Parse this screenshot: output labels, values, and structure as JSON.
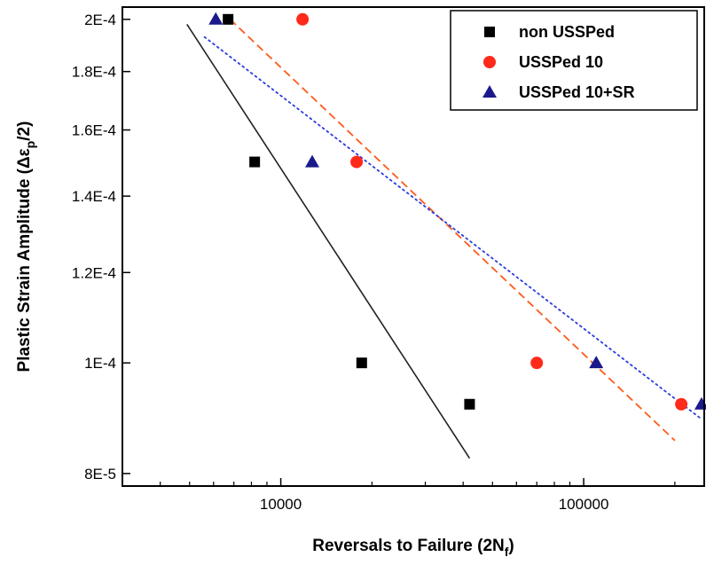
{
  "chart_data": {
    "type": "scatter",
    "x_scale": "log",
    "y_scale": "log",
    "xlim": [
      3000,
      250000
    ],
    "ylim": [
      7.8e-05,
      0.000205
    ],
    "x_ticks": [
      {
        "value": 10000,
        "label": "10000"
      },
      {
        "value": 100000,
        "label": "100000"
      }
    ],
    "y_ticks": [
      {
        "value": 8e-05,
        "label": "8E-5"
      },
      {
        "value": 0.0001,
        "label": "1E-4"
      },
      {
        "value": 0.00012,
        "label": "1.2E-4"
      },
      {
        "value": 0.00014,
        "label": "1.4E-4"
      },
      {
        "value": 0.00016,
        "label": "1.6E-4"
      },
      {
        "value": 0.00018,
        "label": "1.8E-4"
      },
      {
        "value": 0.0002,
        "label": "2E-4"
      }
    ],
    "xlabel": {
      "main": "Reversals to Failure (2N",
      "sub": "f",
      "end": ")"
    },
    "ylabel": {
      "main": "Plastic Strain Amplitude (Δε",
      "sub": "p",
      "end": "/2)"
    },
    "grid": false,
    "legend_position": "top-right",
    "series": [
      {
        "name": "non USSPed",
        "marker": "square",
        "color": "#000000",
        "points": [
          [
            6700,
            0.0002
          ],
          [
            8200,
            0.00015
          ],
          [
            18500,
            0.0001
          ],
          [
            42000,
            9.2e-05
          ]
        ],
        "fit": {
          "style": "solid",
          "color": "#222222",
          "x": [
            4900,
            42000
          ],
          "y": [
            0.000198,
            8.25e-05
          ]
        }
      },
      {
        "name": "USSPed 10",
        "marker": "circle",
        "color": "#ff2a1a",
        "points": [
          [
            11800,
            0.0002
          ],
          [
            17800,
            0.00015
          ],
          [
            70000,
            0.0001
          ],
          [
            210000,
            9.2e-05
          ]
        ],
        "fit": {
          "style": "dashed",
          "color": "#ff5a1a",
          "x": [
            6800,
            200000
          ],
          "y": [
            0.0002,
            8.55e-05
          ]
        }
      },
      {
        "name": "USSPed 10+SR",
        "marker": "triangle",
        "color": "#1a1a8c",
        "points": [
          [
            6100,
            0.0002
          ],
          [
            12700,
            0.00015
          ],
          [
            110000,
            0.0001
          ],
          [
            245000,
            9.2e-05
          ]
        ],
        "fit": {
          "style": "dotted",
          "color": "#2a3ae0",
          "x": [
            5600,
            242000
          ],
          "y": [
            0.000193,
            8.95e-05
          ]
        }
      }
    ]
  }
}
